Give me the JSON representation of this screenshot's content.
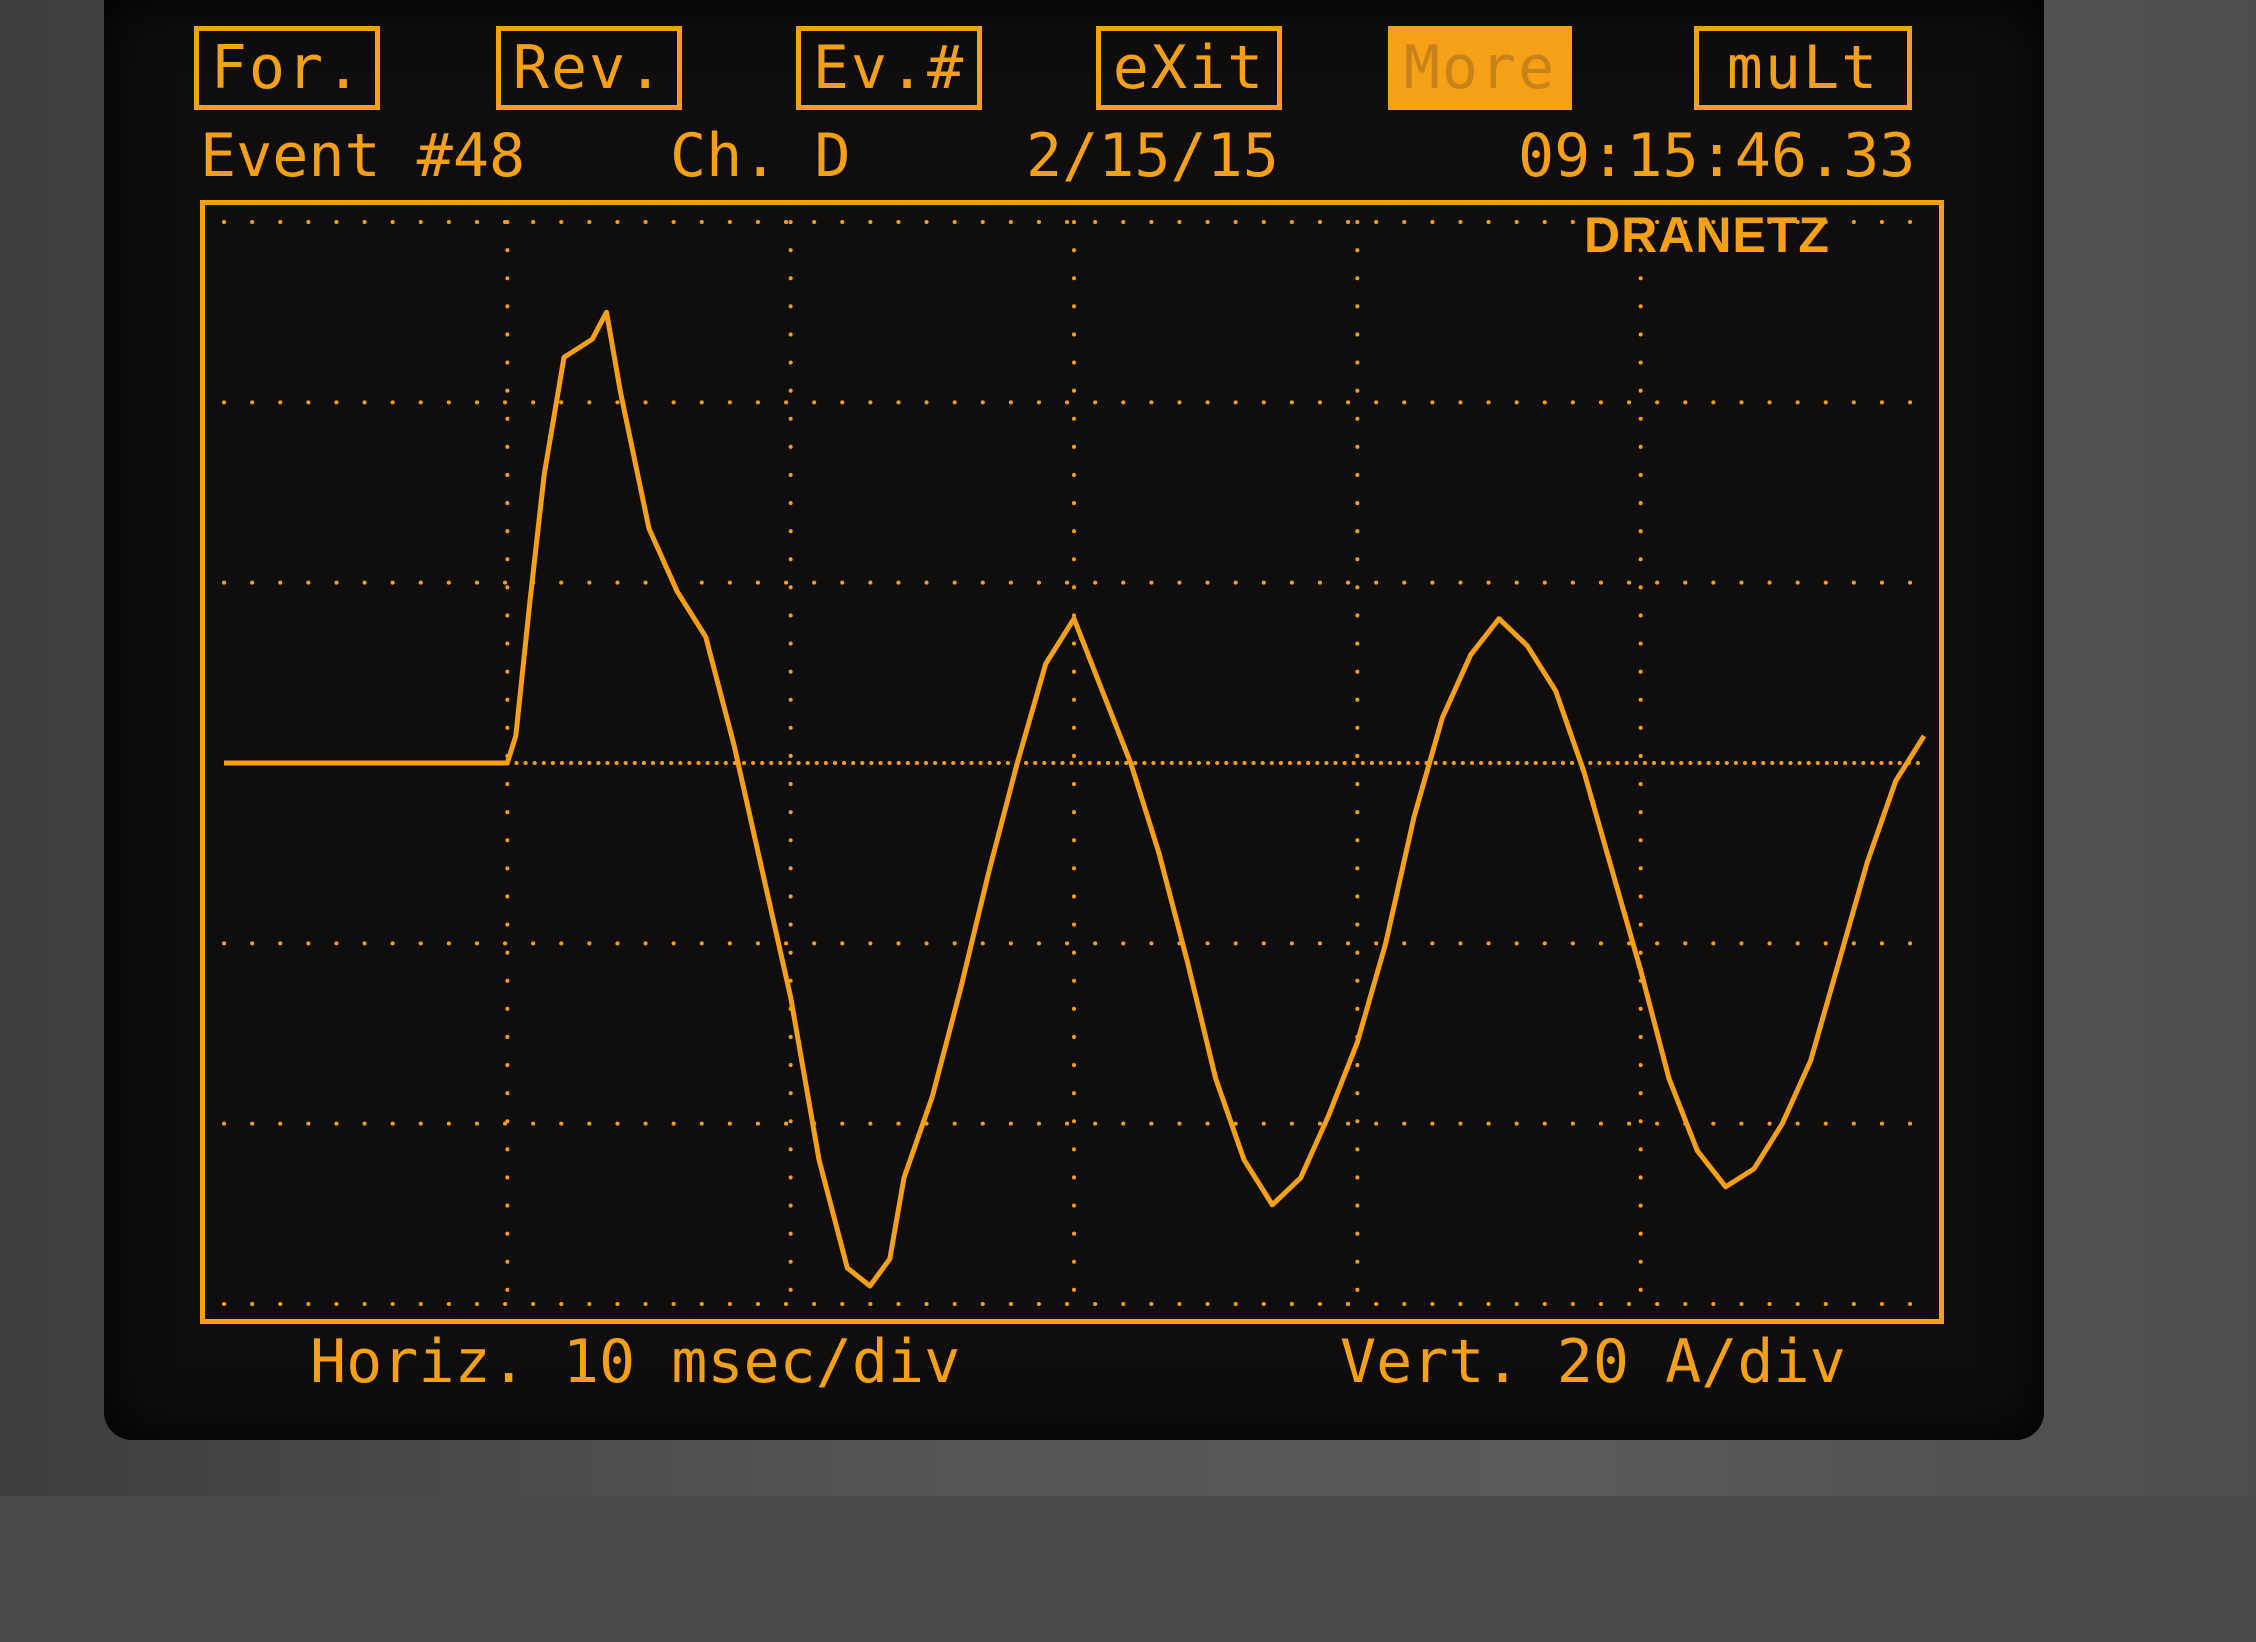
{
  "menu": {
    "items": [
      {
        "label": "For.",
        "active": false
      },
      {
        "label": "Rev.",
        "active": false
      },
      {
        "label": "Ev.#",
        "active": false
      },
      {
        "label": "eXit",
        "active": false
      },
      {
        "label": "More",
        "active": true
      },
      {
        "label": "muLt",
        "active": false
      }
    ]
  },
  "status": {
    "event": "Event #48",
    "channel": "Ch. D",
    "date": "2/15/15",
    "time": "09:15:46.33"
  },
  "brand": "DRANETZ",
  "footer": {
    "horiz": "Horiz. 10 msec/div",
    "vert": "Vert. 20 A/div"
  },
  "colors": {
    "trace": "#f5a016",
    "screen": "#0f0e0d",
    "bezel": "#4a4a49"
  },
  "chart_data": {
    "type": "line",
    "x_units": "msec",
    "y_units": "A",
    "xlim": [
      0,
      60
    ],
    "ylim": [
      -60,
      60
    ],
    "grid": true,
    "series": [
      {
        "x": [
          0,
          5,
          10,
          10.3,
          10.8,
          11.3,
          12,
          13,
          13.5,
          14,
          15,
          16,
          17,
          18,
          19,
          20,
          21,
          22,
          22.8,
          23.5,
          24,
          25,
          26,
          27,
          28,
          29,
          30,
          31,
          32,
          33,
          34,
          35,
          36,
          37,
          38,
          39,
          40,
          41,
          42,
          43,
          44,
          45,
          46,
          47,
          48,
          49,
          50,
          51,
          52,
          53,
          54,
          55,
          56,
          57,
          58,
          59,
          60
        ],
        "y": [
          0,
          0,
          0,
          3,
          18,
          32,
          45,
          47,
          50,
          41,
          26,
          19,
          14,
          2,
          -12,
          -26,
          -44,
          -56,
          -58,
          -55,
          -46,
          -37,
          -25,
          -12,
          0,
          11,
          16,
          8,
          0,
          -10,
          -22,
          -35,
          -44,
          -49,
          -46,
          -39,
          -31,
          -20,
          -6,
          5,
          12,
          16,
          13,
          8,
          -1,
          -12,
          -23,
          -35,
          -43,
          -47,
          -45,
          -40,
          -33,
          -22,
          -11,
          -2,
          3
        ]
      }
    ]
  }
}
